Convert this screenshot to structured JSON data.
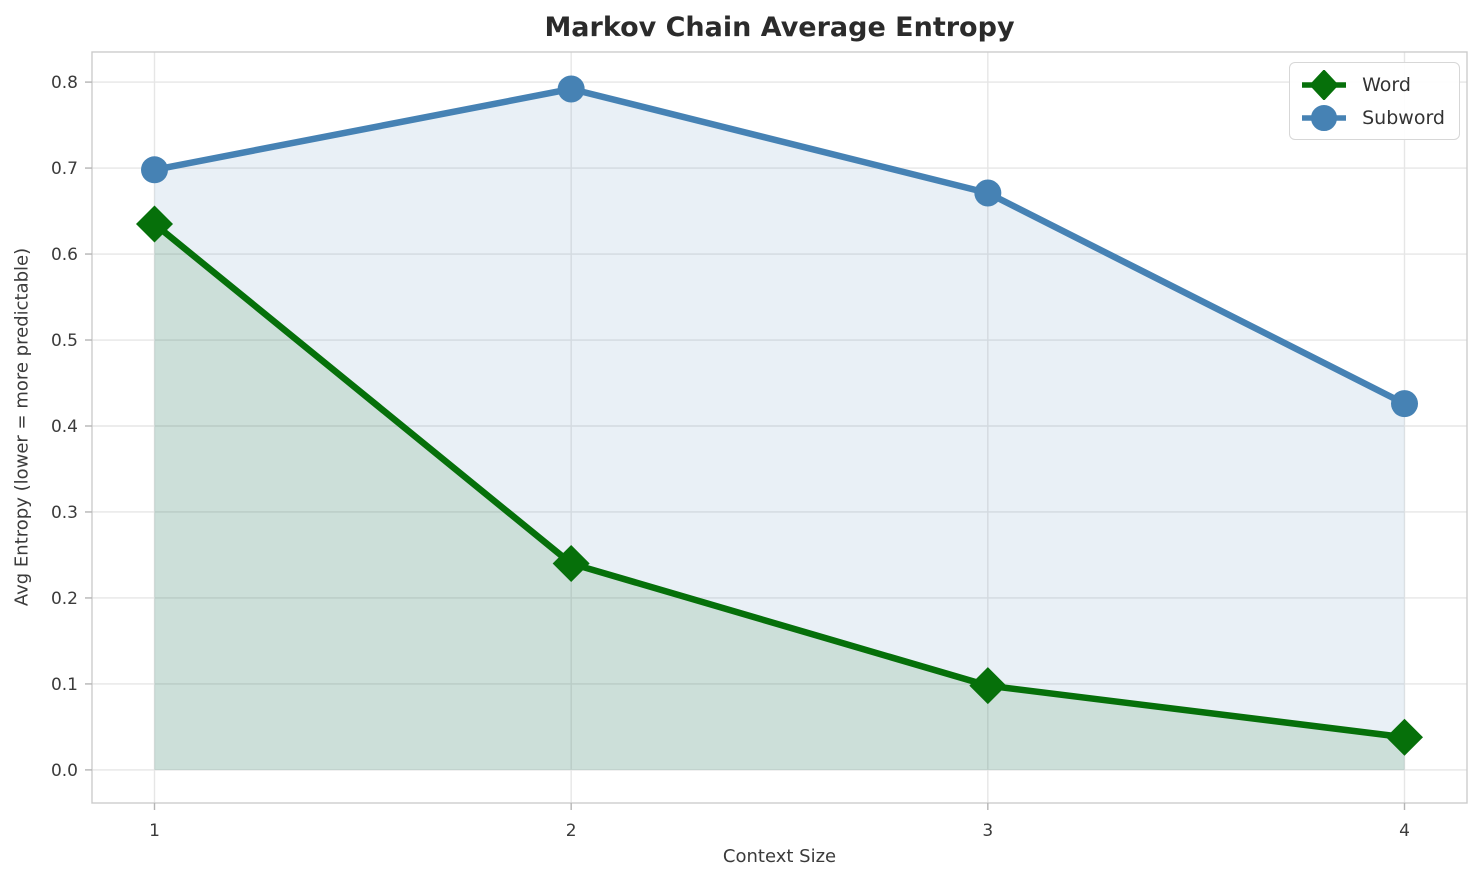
{
  "title": "Markov Chain Average Entropy",
  "chart_data": {
    "type": "line",
    "x": [
      1,
      2,
      3,
      4
    ],
    "series": [
      {
        "name": "Word",
        "values": [
          0.635,
          0.24,
          0.098,
          0.038
        ],
        "color": "#06700a",
        "marker": "diamond",
        "fill_to_zero": true,
        "fill_opacity": 0.13
      },
      {
        "name": "Subword",
        "values": [
          0.698,
          0.792,
          0.671,
          0.426
        ],
        "color": "#4682b4",
        "marker": "circle",
        "fill_to_zero": true,
        "fill_opacity": 0.12
      }
    ],
    "title": "Markov Chain Average Entropy",
    "xlabel": "Context Size",
    "ylabel": "Avg Entropy (lower = more predictable)",
    "xticks": [
      1,
      2,
      3,
      4
    ],
    "yticks": [
      0.0,
      0.1,
      0.2,
      0.3,
      0.4,
      0.5,
      0.6,
      0.7,
      0.8
    ],
    "xlim": [
      0.85,
      4.15
    ],
    "ylim": [
      -0.0385,
      0.835
    ],
    "grid": true,
    "legend_position": "top-right"
  },
  "style": {
    "grid_color": "#e6e6e6",
    "spine_color": "#cccccc",
    "tick_mark_color": "#b5b5b5",
    "tick_text_color": "#3b3b3b",
    "background": "#ffffff"
  }
}
